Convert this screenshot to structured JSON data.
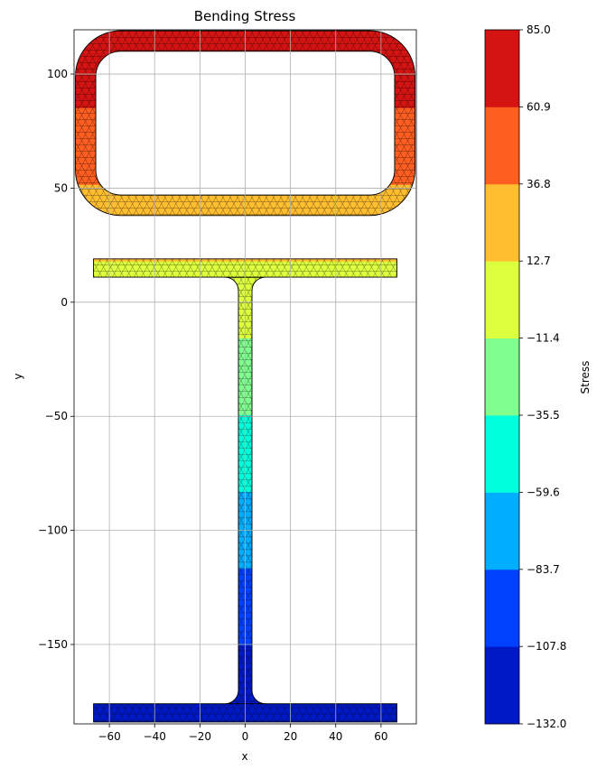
{
  "chart_data": {
    "type": "contour",
    "title": "Bending Stress",
    "xlabel": "x",
    "ylabel": "y",
    "xlim": [
      -75.6,
      75.6
    ],
    "ylim": [
      -184.8,
      119.4
    ],
    "xticks": [
      {
        "value": -60,
        "label": "−60"
      },
      {
        "value": -40,
        "label": "−40"
      },
      {
        "value": -20,
        "label": "−20"
      },
      {
        "value": 0,
        "label": "0"
      },
      {
        "value": 20,
        "label": "20"
      },
      {
        "value": 40,
        "label": "40"
      },
      {
        "value": 60,
        "label": "60"
      }
    ],
    "yticks": [
      {
        "value": 100,
        "label": "100"
      },
      {
        "value": 50,
        "label": "50"
      },
      {
        "value": 0,
        "label": "0"
      },
      {
        "value": -50,
        "label": "−50"
      },
      {
        "value": -100,
        "label": "−100"
      },
      {
        "value": -150,
        "label": "−150"
      }
    ],
    "grid": true,
    "section": {
      "box": {
        "x_outer": [
          -75,
          75
        ],
        "y_outer": [
          38,
          119
        ],
        "corner_radius": 20,
        "wall": 9
      },
      "top_flange": {
        "x": [
          -67,
          67
        ],
        "y": [
          11,
          19
        ]
      },
      "web": {
        "x": [
          -3,
          3
        ],
        "y": [
          -176,
          11
        ],
        "root_radius": 6
      },
      "bottom_flange": {
        "x": [
          -67,
          67
        ],
        "y": [
          -184,
          -176
        ]
      }
    },
    "colorbar": {
      "label": "Stress",
      "min": -132.0,
      "max": 85.0,
      "levels": [
        -132.0,
        -107.8,
        -83.7,
        -59.6,
        -35.5,
        -11.4,
        12.7,
        36.8,
        60.9,
        85.0
      ],
      "level_labels": [
        "−132.0",
        "−107.8",
        "−83.7",
        "−59.6",
        "−35.5",
        "−11.4",
        "12.7",
        "36.8",
        "60.9",
        "85.0"
      ],
      "colors": [
        "#0019c7",
        "#0040ff",
        "#00aeff",
        "#00ffdd",
        "#80ff8f",
        "#dcff3e",
        "#ffbe30",
        "#ff5e21",
        "#d41412"
      ]
    }
  }
}
